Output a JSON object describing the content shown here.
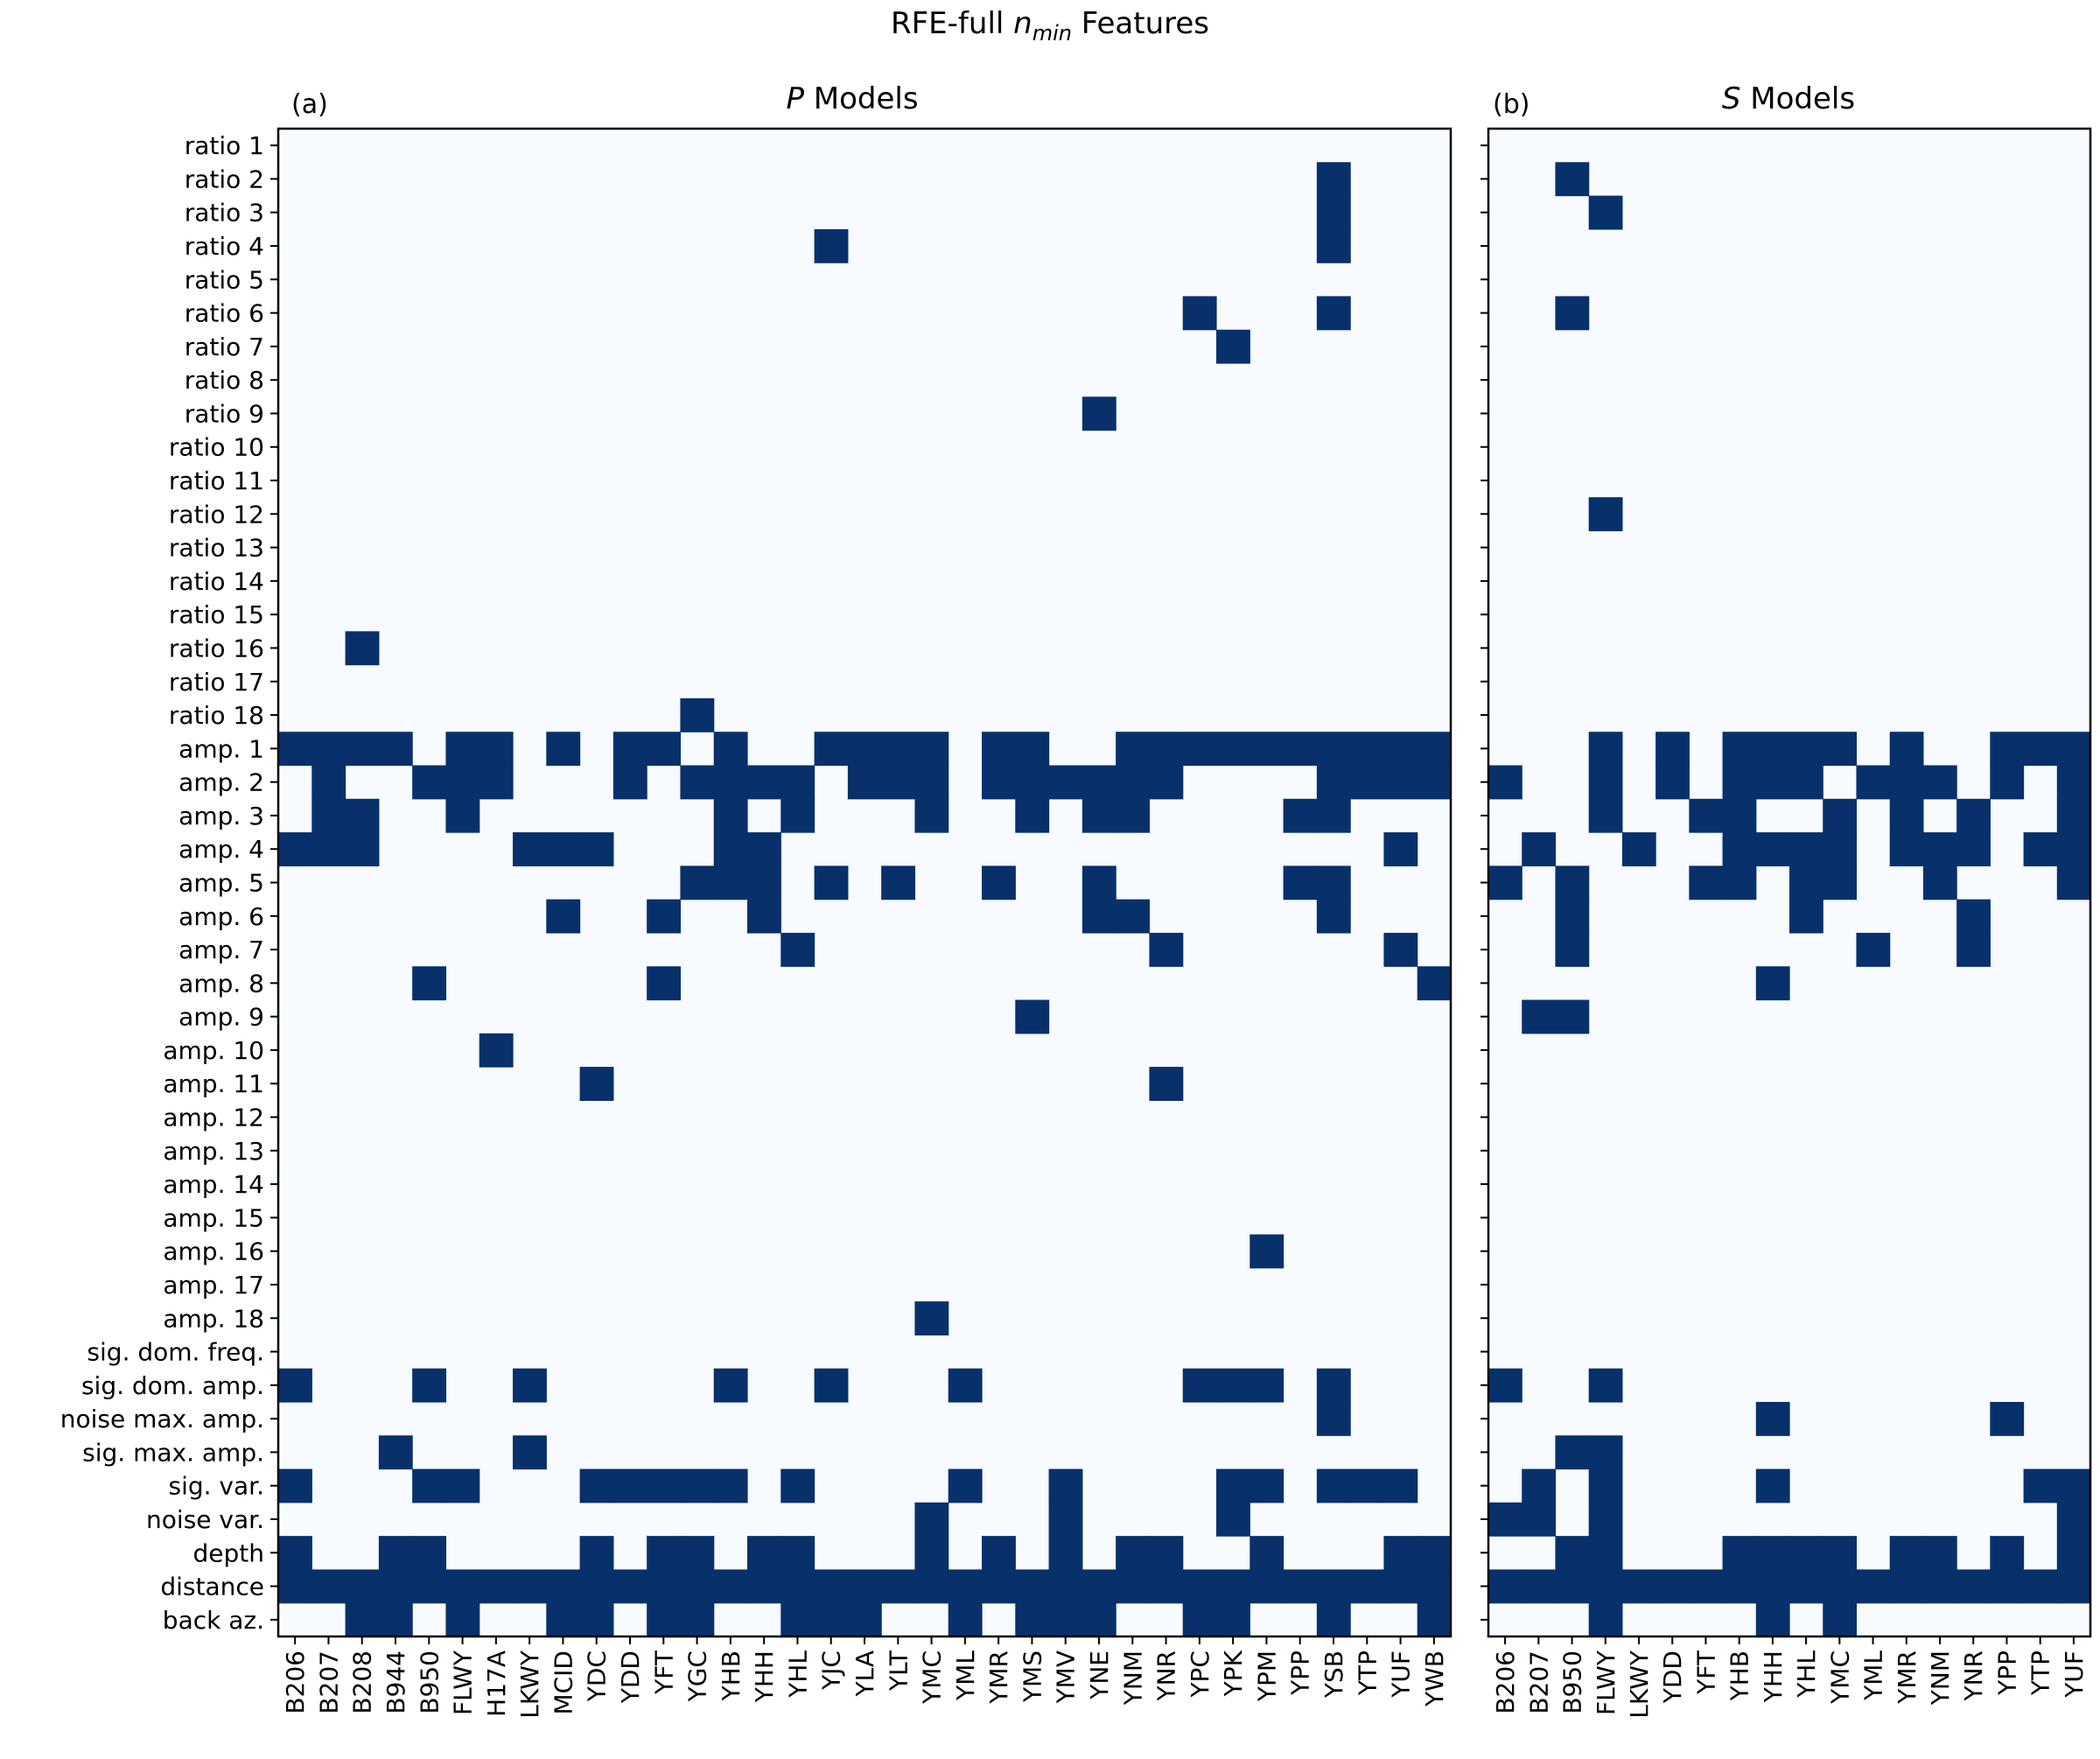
{
  "chart_data": {
    "type": "heatmap",
    "title": "RFE-full n_min Features",
    "title_parts": {
      "before": "RFE-full ",
      "italic": "n",
      "sub": "min",
      "after": " Features"
    },
    "colors": {
      "on": "#08306b",
      "off": "#f7fbff",
      "frame": "#000000"
    },
    "rows": [
      "ratio 1",
      "ratio 2",
      "ratio 3",
      "ratio 4",
      "ratio 5",
      "ratio 6",
      "ratio 7",
      "ratio 8",
      "ratio 9",
      "ratio 10",
      "ratio 11",
      "ratio 12",
      "ratio 13",
      "ratio 14",
      "ratio 15",
      "ratio 16",
      "ratio 17",
      "ratio 18",
      "amp. 1",
      "amp. 2",
      "amp. 3",
      "amp. 4",
      "amp. 5",
      "amp. 6",
      "amp. 7",
      "amp. 8",
      "amp. 9",
      "amp. 10",
      "amp. 11",
      "amp. 12",
      "amp. 13",
      "amp. 14",
      "amp. 15",
      "amp. 16",
      "amp. 17",
      "amp. 18",
      "sig. dom. freq.",
      "sig. dom. amp.",
      "noise max. amp.",
      "sig. max. amp.",
      "sig. var.",
      "noise var.",
      "depth",
      "distance",
      "back az."
    ],
    "panels": [
      {
        "panel_label": "(a)",
        "title_italic": "P",
        "title_rest": " Models",
        "columns": [
          "B206",
          "B207",
          "B208",
          "B944",
          "B950",
          "FLWY",
          "H17A",
          "LKWY",
          "MCID",
          "YDC",
          "YDD",
          "YFT",
          "YGC",
          "YHB",
          "YHH",
          "YHL",
          "YJC",
          "YLA",
          "YLT",
          "YMC",
          "YML",
          "YMR",
          "YMS",
          "YMV",
          "YNE",
          "YNM",
          "YNR",
          "YPC",
          "YPK",
          "YPM",
          "YPP",
          "YSB",
          "YTP",
          "YUF",
          "YWB"
        ],
        "selected": {
          "ratio 2": [
            "YSB"
          ],
          "ratio 3": [
            "YSB"
          ],
          "ratio 4": [
            "YJC",
            "YSB"
          ],
          "ratio 6": [
            "YPC",
            "YSB"
          ],
          "ratio 7": [
            "YPK"
          ],
          "ratio 9": [
            "YNE"
          ],
          "ratio 16": [
            "B208"
          ],
          "ratio 18": [
            "YGC"
          ],
          "amp. 1": [
            "B206",
            "B207",
            "B208",
            "B944",
            "FLWY",
            "H17A",
            "MCID",
            "YDD",
            "YFT",
            "YHB",
            "YJC",
            "YLA",
            "YLT",
            "YMC",
            "YMR",
            "YMS",
            "YNM",
            "YNR",
            "YPC",
            "YPK",
            "YPM",
            "YPP",
            "YSB",
            "YTP",
            "YUF",
            "YWB"
          ],
          "amp. 2": [
            "B207",
            "B950",
            "FLWY",
            "H17A",
            "YDD",
            "YGC",
            "YHB",
            "YHH",
            "YHL",
            "YLA",
            "YLT",
            "YMC",
            "YMR",
            "YMS",
            "YMV",
            "YNE",
            "YNM",
            "YNR",
            "YSB",
            "YTP",
            "YUF",
            "YWB"
          ],
          "amp. 3": [
            "B207",
            "B208",
            "FLWY",
            "YHB",
            "YHL",
            "YMC",
            "YMS",
            "YNE",
            "YNM",
            "YPP",
            "YSB"
          ],
          "amp. 4": [
            "B206",
            "B207",
            "B208",
            "LKWY",
            "MCID",
            "YDC",
            "YHB",
            "YHH",
            "YUF"
          ],
          "amp. 5": [
            "YGC",
            "YHB",
            "YHH",
            "YJC",
            "YLT",
            "YMR",
            "YNE",
            "YPP",
            "YSB"
          ],
          "amp. 6": [
            "MCID",
            "YFT",
            "YHH",
            "YNE",
            "YNM",
            "YSB"
          ],
          "amp. 7": [
            "YHL",
            "YNR",
            "YUF"
          ],
          "amp. 8": [
            "B950",
            "YFT",
            "YWB"
          ],
          "amp. 9": [
            "YMS"
          ],
          "amp. 10": [
            "H17A"
          ],
          "amp. 11": [
            "YDC",
            "YNR"
          ],
          "amp. 16": [
            "YPM"
          ],
          "amp. 18": [
            "YMC"
          ],
          "sig. dom. amp.": [
            "B206",
            "B950",
            "LKWY",
            "YHB",
            "YJC",
            "YML",
            "YPC",
            "YPK",
            "YPM",
            "YSB"
          ],
          "noise max. amp.": [
            "YSB"
          ],
          "sig. max. amp.": [
            "B944",
            "LKWY"
          ],
          "sig. var.": [
            "B206",
            "B950",
            "FLWY",
            "YDC",
            "YDD",
            "YFT",
            "YGC",
            "YHB",
            "YHL",
            "YML",
            "YMV",
            "YPK",
            "YPM",
            "YSB",
            "YTP",
            "YUF"
          ],
          "noise var.": [
            "YMC",
            "YMV",
            "YPK"
          ],
          "depth": [
            "B206",
            "B944",
            "B950",
            "YDC",
            "YFT",
            "YGC",
            "YHH",
            "YHL",
            "YMC",
            "YMR",
            "YMV",
            "YNM",
            "YNR",
            "YPM",
            "YUF",
            "YWB"
          ],
          "distance": [
            "B206",
            "B207",
            "B208",
            "B944",
            "B950",
            "FLWY",
            "H17A",
            "LKWY",
            "MCID",
            "YDC",
            "YDD",
            "YFT",
            "YGC",
            "YHB",
            "YHH",
            "YHL",
            "YJC",
            "YLA",
            "YLT",
            "YMC",
            "YML",
            "YMR",
            "YMS",
            "YMV",
            "YNE",
            "YNM",
            "YNR",
            "YPC",
            "YPK",
            "YPM",
            "YPP",
            "YSB",
            "YTP",
            "YUF",
            "YWB"
          ],
          "back az.": [
            "B208",
            "B944",
            "FLWY",
            "MCID",
            "YDC",
            "YFT",
            "YGC",
            "YHL",
            "YJC",
            "YLA",
            "YML",
            "YMS",
            "YMV",
            "YNE",
            "YPC",
            "YPK",
            "YSB",
            "YWB"
          ]
        }
      },
      {
        "panel_label": "(b)",
        "title_italic": "S",
        "title_rest": " Models",
        "columns": [
          "B206",
          "B207",
          "B950",
          "FLWY",
          "LKWY",
          "YDD",
          "YFT",
          "YHB",
          "YHH",
          "YHL",
          "YMC",
          "YML",
          "YMR",
          "YNM",
          "YNR",
          "YPP",
          "YTP",
          "YUF"
        ],
        "selected": {
          "ratio 2": [
            "B950"
          ],
          "ratio 3": [
            "FLWY"
          ],
          "ratio 6": [
            "B950"
          ],
          "ratio 12": [
            "FLWY"
          ],
          "amp. 1": [
            "FLWY",
            "YDD",
            "YHB",
            "YHH",
            "YHL",
            "YMC",
            "YMR",
            "YPP",
            "YTP",
            "YUF"
          ],
          "amp. 2": [
            "B206",
            "FLWY",
            "YDD",
            "YHB",
            "YHH",
            "YHL",
            "YML",
            "YMR",
            "YNM",
            "YPP",
            "YUF"
          ],
          "amp. 3": [
            "FLWY",
            "YFT",
            "YHB",
            "YMC",
            "YMR",
            "YNR",
            "YUF"
          ],
          "amp. 4": [
            "B207",
            "LKWY",
            "YHB",
            "YHH",
            "YHL",
            "YMC",
            "YMR",
            "YNM",
            "YNR",
            "YTP",
            "YUF"
          ],
          "amp. 5": [
            "B206",
            "B950",
            "YFT",
            "YHB",
            "YHL",
            "YMC",
            "YNM",
            "YUF"
          ],
          "amp. 6": [
            "B950",
            "YHL",
            "YNR"
          ],
          "amp. 7": [
            "B950",
            "YML",
            "YNR"
          ],
          "amp. 8": [
            "YHH"
          ],
          "amp. 9": [
            "B207",
            "B950"
          ],
          "sig. dom. amp.": [
            "B206",
            "FLWY"
          ],
          "noise max. amp.": [
            "YHH",
            "YPP"
          ],
          "sig. max. amp.": [
            "B950",
            "FLWY"
          ],
          "sig. var.": [
            "B207",
            "FLWY",
            "YHH",
            "YTP",
            "YUF"
          ],
          "noise var.": [
            "B206",
            "B207",
            "FLWY",
            "YUF"
          ],
          "depth": [
            "B950",
            "FLWY",
            "YHB",
            "YHH",
            "YHL",
            "YMC",
            "YMR",
            "YNM",
            "YPP",
            "YUF"
          ],
          "distance": [
            "B206",
            "B207",
            "B950",
            "FLWY",
            "LKWY",
            "YDD",
            "YFT",
            "YHB",
            "YHH",
            "YHL",
            "YMC",
            "YML",
            "YMR",
            "YNM",
            "YNR",
            "YPP",
            "YTP",
            "YUF"
          ],
          "back az.": [
            "FLWY",
            "YHH",
            "YMC"
          ]
        }
      }
    ]
  }
}
